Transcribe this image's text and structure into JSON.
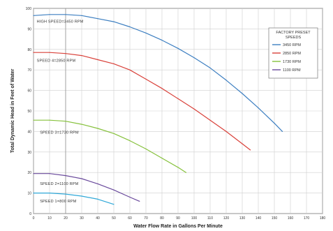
{
  "chart_data": {
    "type": "line",
    "xlabel": "Water Flow Rate in Gallons Per Minute",
    "ylabel": "Total Dynamic Head in Feet of Water",
    "xlim": [
      0,
      180
    ],
    "ylim": [
      0,
      100
    ],
    "x_ticks": [
      0,
      10,
      20,
      30,
      40,
      50,
      60,
      70,
      80,
      90,
      100,
      110,
      120,
      130,
      140,
      150,
      160,
      170,
      180
    ],
    "y_ticks": [
      0,
      10,
      20,
      30,
      40,
      50,
      60,
      70,
      80,
      90,
      100
    ],
    "grid": true,
    "legend": {
      "title": "FACTORY PRESET SPEEDS",
      "placement": "right",
      "entries": [
        "3450 RPM",
        "2850 RPM",
        "1730 RPM",
        "1100 RPM"
      ]
    },
    "series": [
      {
        "name": "3450 RPM",
        "color": "#3d7fc1",
        "points": [
          [
            0,
            96.5
          ],
          [
            10,
            97
          ],
          [
            20,
            97
          ],
          [
            30,
            96.5
          ],
          [
            40,
            95
          ],
          [
            50,
            93.5
          ],
          [
            60,
            91
          ],
          [
            70,
            88
          ],
          [
            80,
            84.5
          ],
          [
            90,
            80.5
          ],
          [
            100,
            76
          ],
          [
            110,
            71
          ],
          [
            120,
            65
          ],
          [
            130,
            58.5
          ],
          [
            140,
            51.5
          ],
          [
            150,
            44
          ],
          [
            155,
            40
          ]
        ]
      },
      {
        "name": "2850 RPM",
        "color": "#d9413a",
        "points": [
          [
            0,
            78.5
          ],
          [
            10,
            78.5
          ],
          [
            20,
            78
          ],
          [
            30,
            77
          ],
          [
            40,
            75
          ],
          [
            50,
            73
          ],
          [
            60,
            70
          ],
          [
            70,
            65.5
          ],
          [
            80,
            61
          ],
          [
            90,
            56
          ],
          [
            100,
            51
          ],
          [
            110,
            45.5
          ],
          [
            120,
            40
          ],
          [
            130,
            34
          ],
          [
            135,
            31
          ]
        ]
      },
      {
        "name": "1730 RPM",
        "color": "#86c13c",
        "points": [
          [
            0,
            45.5
          ],
          [
            10,
            45.5
          ],
          [
            20,
            45
          ],
          [
            30,
            43.5
          ],
          [
            40,
            41.5
          ],
          [
            50,
            39
          ],
          [
            60,
            35.5
          ],
          [
            70,
            31.5
          ],
          [
            80,
            27
          ],
          [
            90,
            22.5
          ],
          [
            95,
            20
          ]
        ]
      },
      {
        "name": "1100 RPM",
        "color": "#6a4a9c",
        "points": [
          [
            0,
            19.5
          ],
          [
            10,
            19.5
          ],
          [
            20,
            18.5
          ],
          [
            30,
            17
          ],
          [
            40,
            14.5
          ],
          [
            50,
            11.5
          ],
          [
            60,
            8
          ],
          [
            66,
            6
          ]
        ]
      },
      {
        "name": "",
        "color": "#2fa8d8",
        "points": [
          [
            0,
            10
          ],
          [
            10,
            10
          ],
          [
            20,
            9.5
          ],
          [
            30,
            8.5
          ],
          [
            40,
            7
          ],
          [
            50,
            4.5
          ]
        ]
      }
    ],
    "annotations": [
      {
        "text": "HIGH SPEED=3450 RPM",
        "x": 2,
        "y": 93
      },
      {
        "text": "SPEED 4=2850 RPM",
        "x": 2,
        "y": 74
      },
      {
        "text": "SPEED 3=1730 RPM",
        "x": 4,
        "y": 39
      },
      {
        "text": "SPEED 2=1100 RPM",
        "x": 4,
        "y": 14
      },
      {
        "text": "SPEED 1=800 RPM",
        "x": 4,
        "y": 5.5
      }
    ]
  }
}
